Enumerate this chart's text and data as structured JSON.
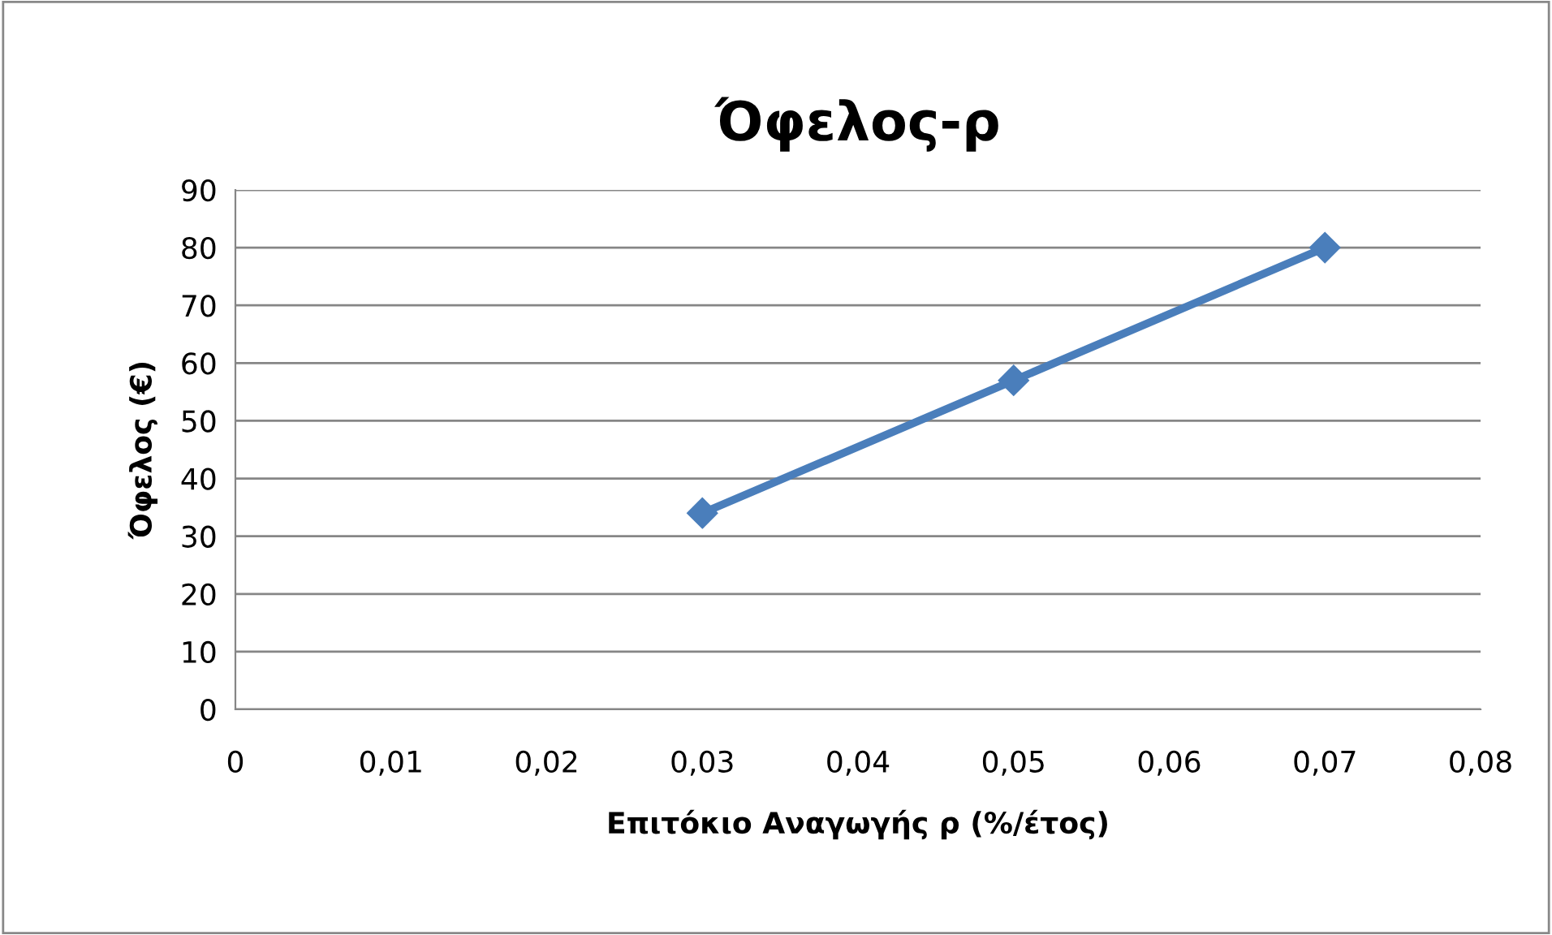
{
  "chart_data": {
    "type": "line",
    "title": "Όφελος-ρ",
    "xlabel": "Επιτόκιο Αναγωγής ρ (%/έτος)",
    "ylabel": "Όφελος (€)",
    "x": [
      0.03,
      0.05,
      0.07
    ],
    "series": [
      {
        "color": "#4a7ebb",
        "values": [
          34,
          57,
          80
        ]
      }
    ],
    "marker": "diamond",
    "line_style": "solid",
    "grid": "y",
    "legend": false,
    "xlim": [
      0,
      0.08
    ],
    "xticks": [
      0,
      {
        "value": 0.01,
        "label": "0,01"
      },
      {
        "value": 0.02,
        "label": "0,02"
      },
      {
        "value": 0.03,
        "label": "0,03"
      },
      {
        "value": 0.04,
        "label": "0,04"
      },
      {
        "value": 0.05,
        "label": "0,05"
      },
      {
        "value": 0.06,
        "label": "0,06"
      },
      {
        "value": 0.07,
        "label": "0,07"
      },
      {
        "value": 0.08,
        "label": "0,08"
      }
    ],
    "ylim": [
      0,
      90
    ],
    "yticks": [
      0,
      10,
      20,
      30,
      40,
      50,
      60,
      70,
      80,
      90
    ]
  }
}
